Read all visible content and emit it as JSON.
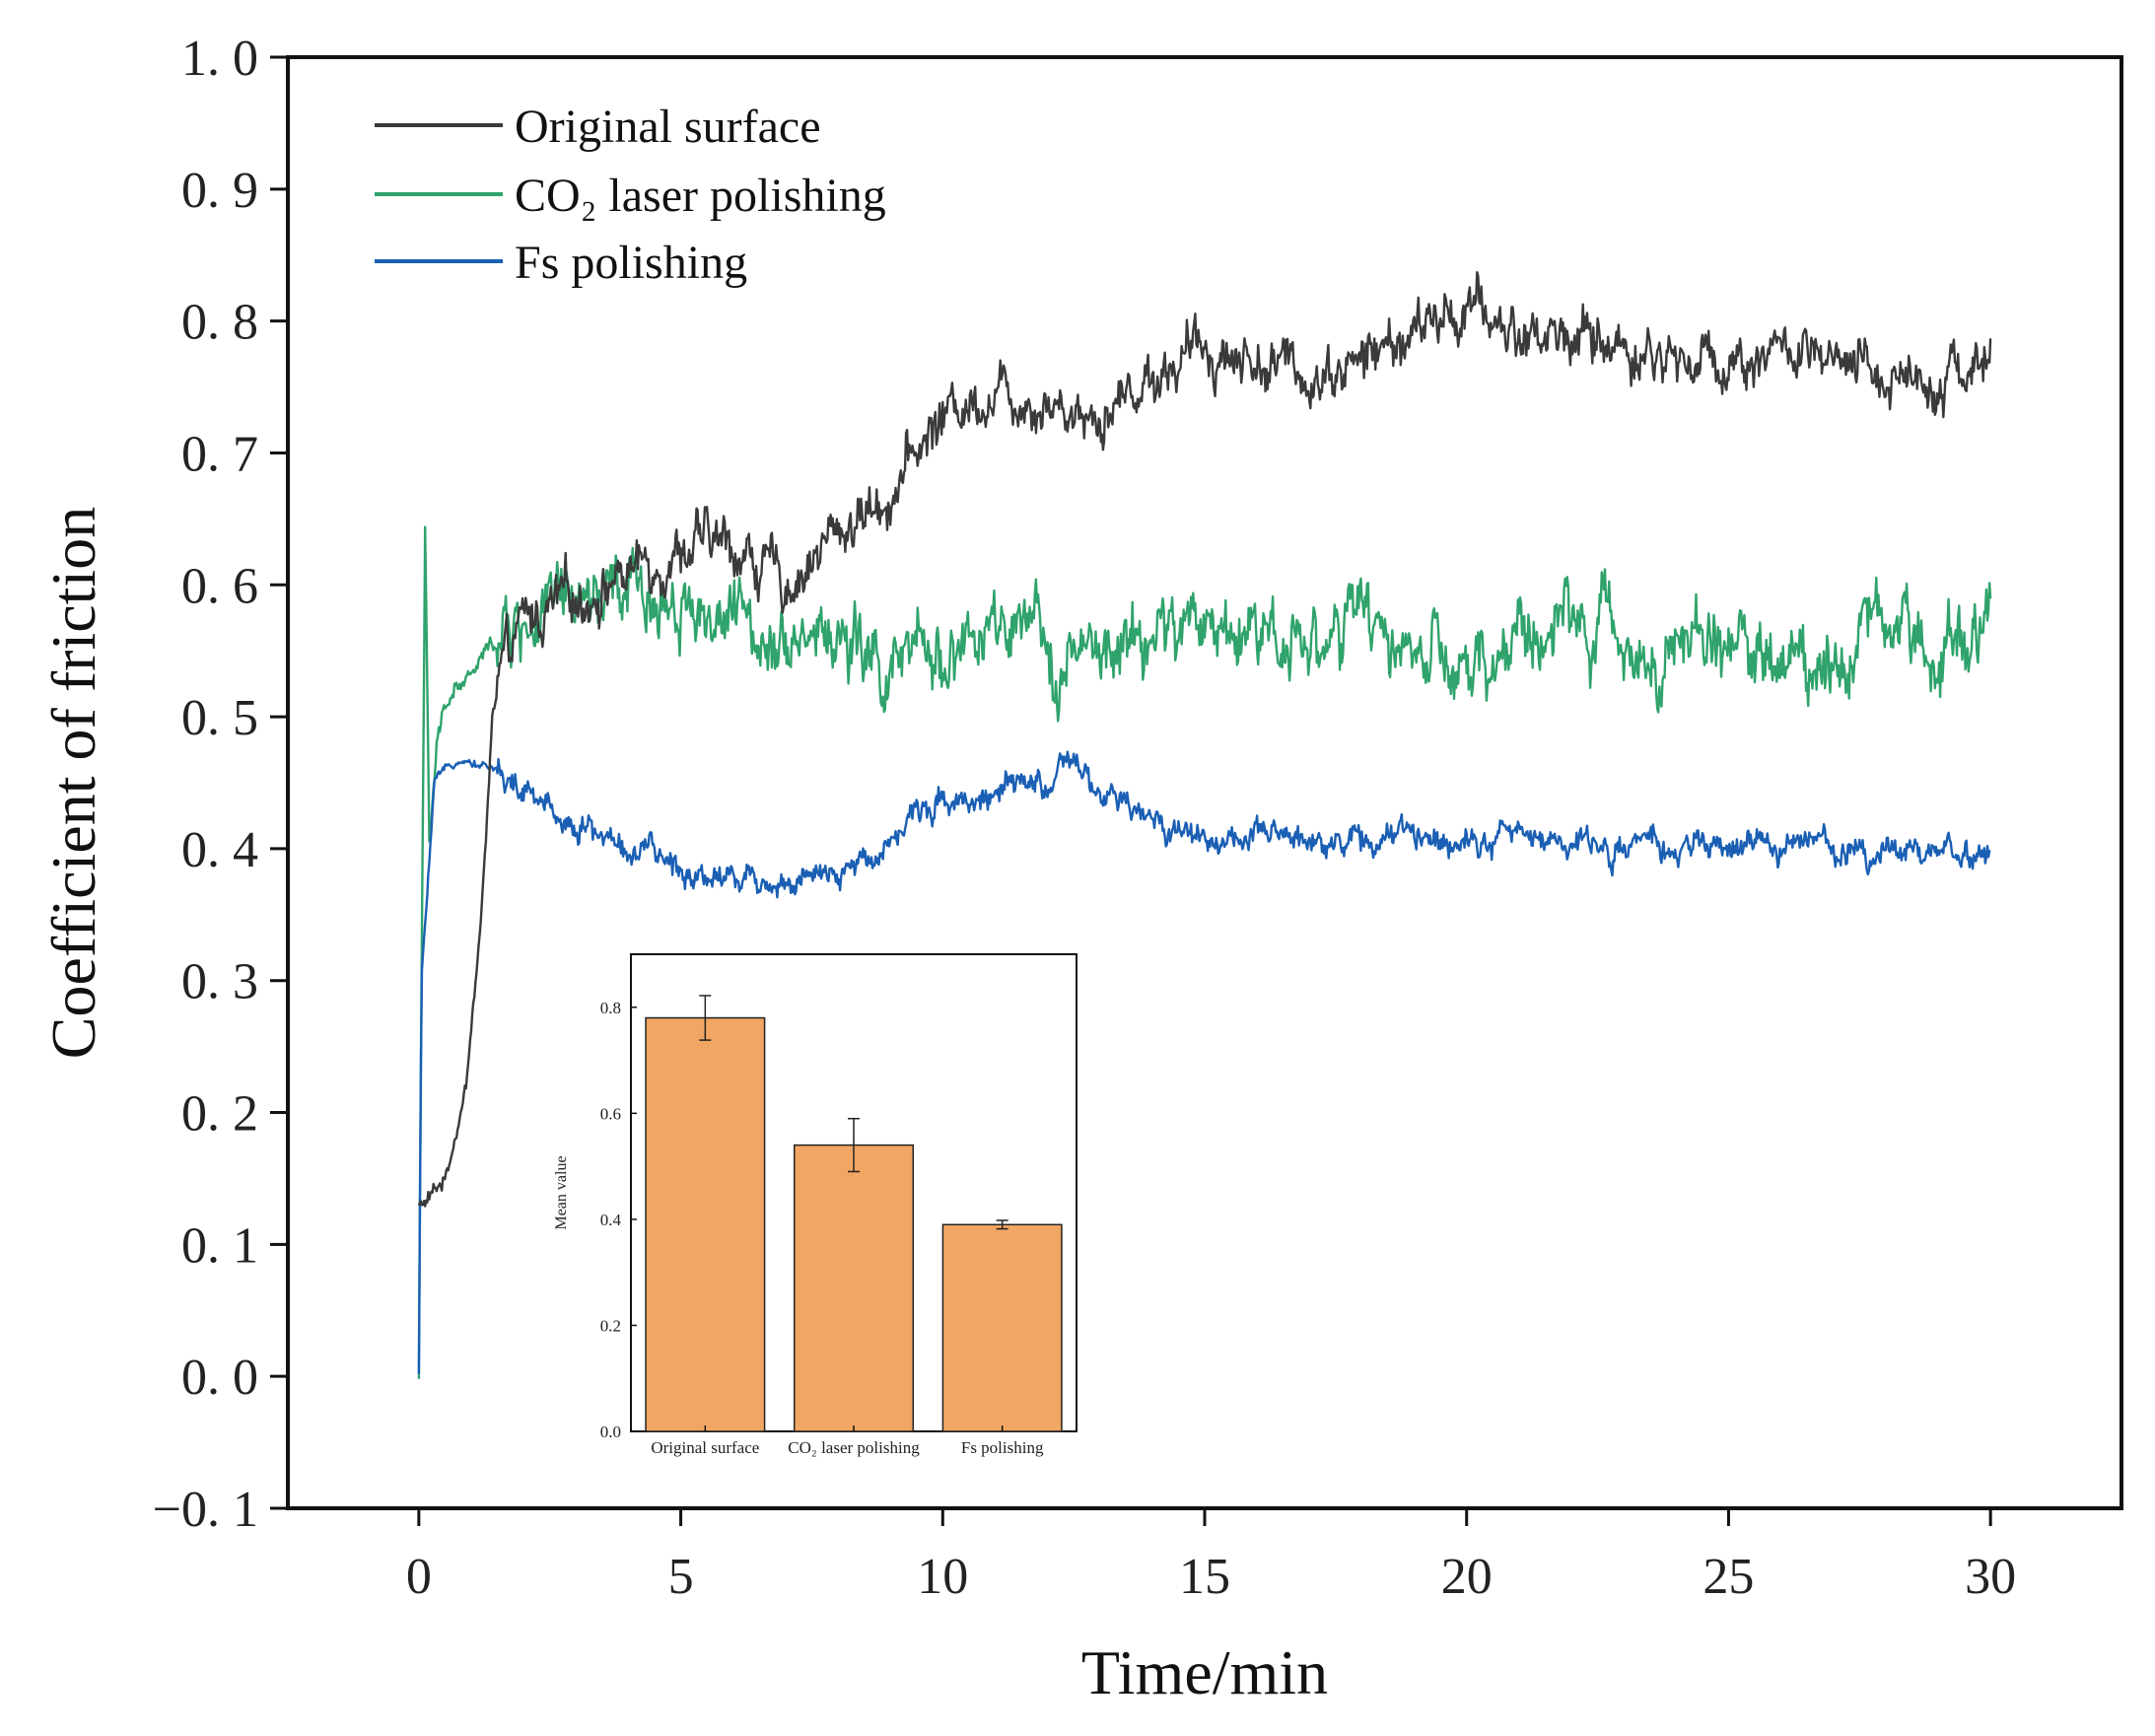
{
  "chart_data": [
    {
      "type": "line",
      "xlabel": "Time/min",
      "ylabel": "Coefficient of friction",
      "xlim": [
        -2.5,
        32.5
      ],
      "ylim": [
        -0.1,
        1.0
      ],
      "xticks": [
        0,
        5,
        10,
        15,
        20,
        25,
        30
      ],
      "xtick_labels": [
        "0",
        "5",
        "10",
        "15",
        "20",
        "25",
        "30"
      ],
      "yticks": [
        -0.1,
        0.0,
        0.1,
        0.2,
        0.3,
        0.4,
        0.5,
        0.6,
        0.7,
        0.8,
        0.9,
        1.0
      ],
      "ytick_labels": [
        "−0. 1",
        "0. 0",
        "0. 1",
        "0. 2",
        "0. 3",
        "0. 4",
        "0. 5",
        "0. 6",
        "0. 7",
        "0. 8",
        "0. 9",
        "1. 0"
      ],
      "legend_position": "top-left",
      "series": [
        {
          "name": "Original surface",
          "color": "#3a3a3a",
          "noise": 0.022,
          "x": [
            0,
            0.1,
            0.5,
            0.9,
            1.2,
            1.4,
            1.6,
            2,
            3,
            4,
            5,
            6,
            7,
            8,
            9,
            10,
            11,
            12,
            13,
            14,
            15,
            16,
            17,
            18,
            19,
            20,
            21,
            22,
            23,
            24,
            25,
            26,
            27,
            28,
            29,
            30
          ],
          "y": [
            0.13,
            0.13,
            0.15,
            0.22,
            0.35,
            0.5,
            0.53,
            0.57,
            0.59,
            0.61,
            0.63,
            0.63,
            0.6,
            0.64,
            0.67,
            0.73,
            0.75,
            0.74,
            0.73,
            0.76,
            0.78,
            0.77,
            0.76,
            0.77,
            0.79,
            0.81,
            0.79,
            0.79,
            0.78,
            0.77,
            0.77,
            0.78,
            0.76,
            0.76,
            0.76,
            0.77
          ]
        },
        {
          "name": "CO₂ laser polishing",
          "color": "#2fa36b",
          "noise": 0.03,
          "x": [
            0,
            0.05,
            0.12,
            0.2,
            0.35,
            0.6,
            1,
            1.5,
            2,
            3,
            4,
            5,
            6,
            7,
            8,
            9,
            10,
            11,
            12,
            13,
            14,
            15,
            16,
            17,
            18,
            19,
            20,
            21,
            22,
            23,
            24,
            25,
            26,
            27,
            28,
            29,
            30
          ],
          "y": [
            0.0,
            0.3,
            0.64,
            0.4,
            0.48,
            0.52,
            0.53,
            0.56,
            0.57,
            0.58,
            0.59,
            0.59,
            0.57,
            0.57,
            0.56,
            0.53,
            0.55,
            0.56,
            0.55,
            0.54,
            0.56,
            0.57,
            0.57,
            0.56,
            0.57,
            0.55,
            0.52,
            0.56,
            0.57,
            0.56,
            0.55,
            0.56,
            0.54,
            0.55,
            0.58,
            0.55,
            0.6
          ]
        },
        {
          "name": "Fs polishing",
          "color": "#1a5fb4",
          "noise": 0.012,
          "x": [
            0,
            0.05,
            0.3,
            0.8,
            1.5,
            2,
            3,
            4,
            5,
            6,
            7,
            8,
            9,
            10,
            11,
            12,
            12.5,
            13,
            14,
            15,
            16,
            17,
            18,
            19,
            20,
            21,
            22,
            23,
            24,
            25,
            26,
            27,
            28,
            29,
            30
          ],
          "y": [
            0.0,
            0.3,
            0.45,
            0.47,
            0.46,
            0.44,
            0.42,
            0.4,
            0.385,
            0.38,
            0.375,
            0.375,
            0.41,
            0.44,
            0.44,
            0.45,
            0.46,
            0.44,
            0.42,
            0.41,
            0.405,
            0.41,
            0.405,
            0.41,
            0.41,
            0.41,
            0.405,
            0.4,
            0.4,
            0.4,
            0.405,
            0.4,
            0.4,
            0.4,
            0.395
          ]
        }
      ]
    },
    {
      "type": "bar",
      "title": "",
      "ylabel": "Mean value",
      "ylim": [
        0,
        0.9
      ],
      "yticks": [
        0.0,
        0.2,
        0.4,
        0.6,
        0.8
      ],
      "ytick_labels": [
        "0.0",
        "0.2",
        "0.4",
        "0.6",
        "0.8"
      ],
      "categories": [
        "Original surface",
        "CO₂ laser polishing",
        "Fs polishing"
      ],
      "values": [
        0.78,
        0.54,
        0.39
      ],
      "errors": [
        0.042,
        0.05,
        0.008
      ],
      "bar_color": "#f2a663"
    }
  ]
}
